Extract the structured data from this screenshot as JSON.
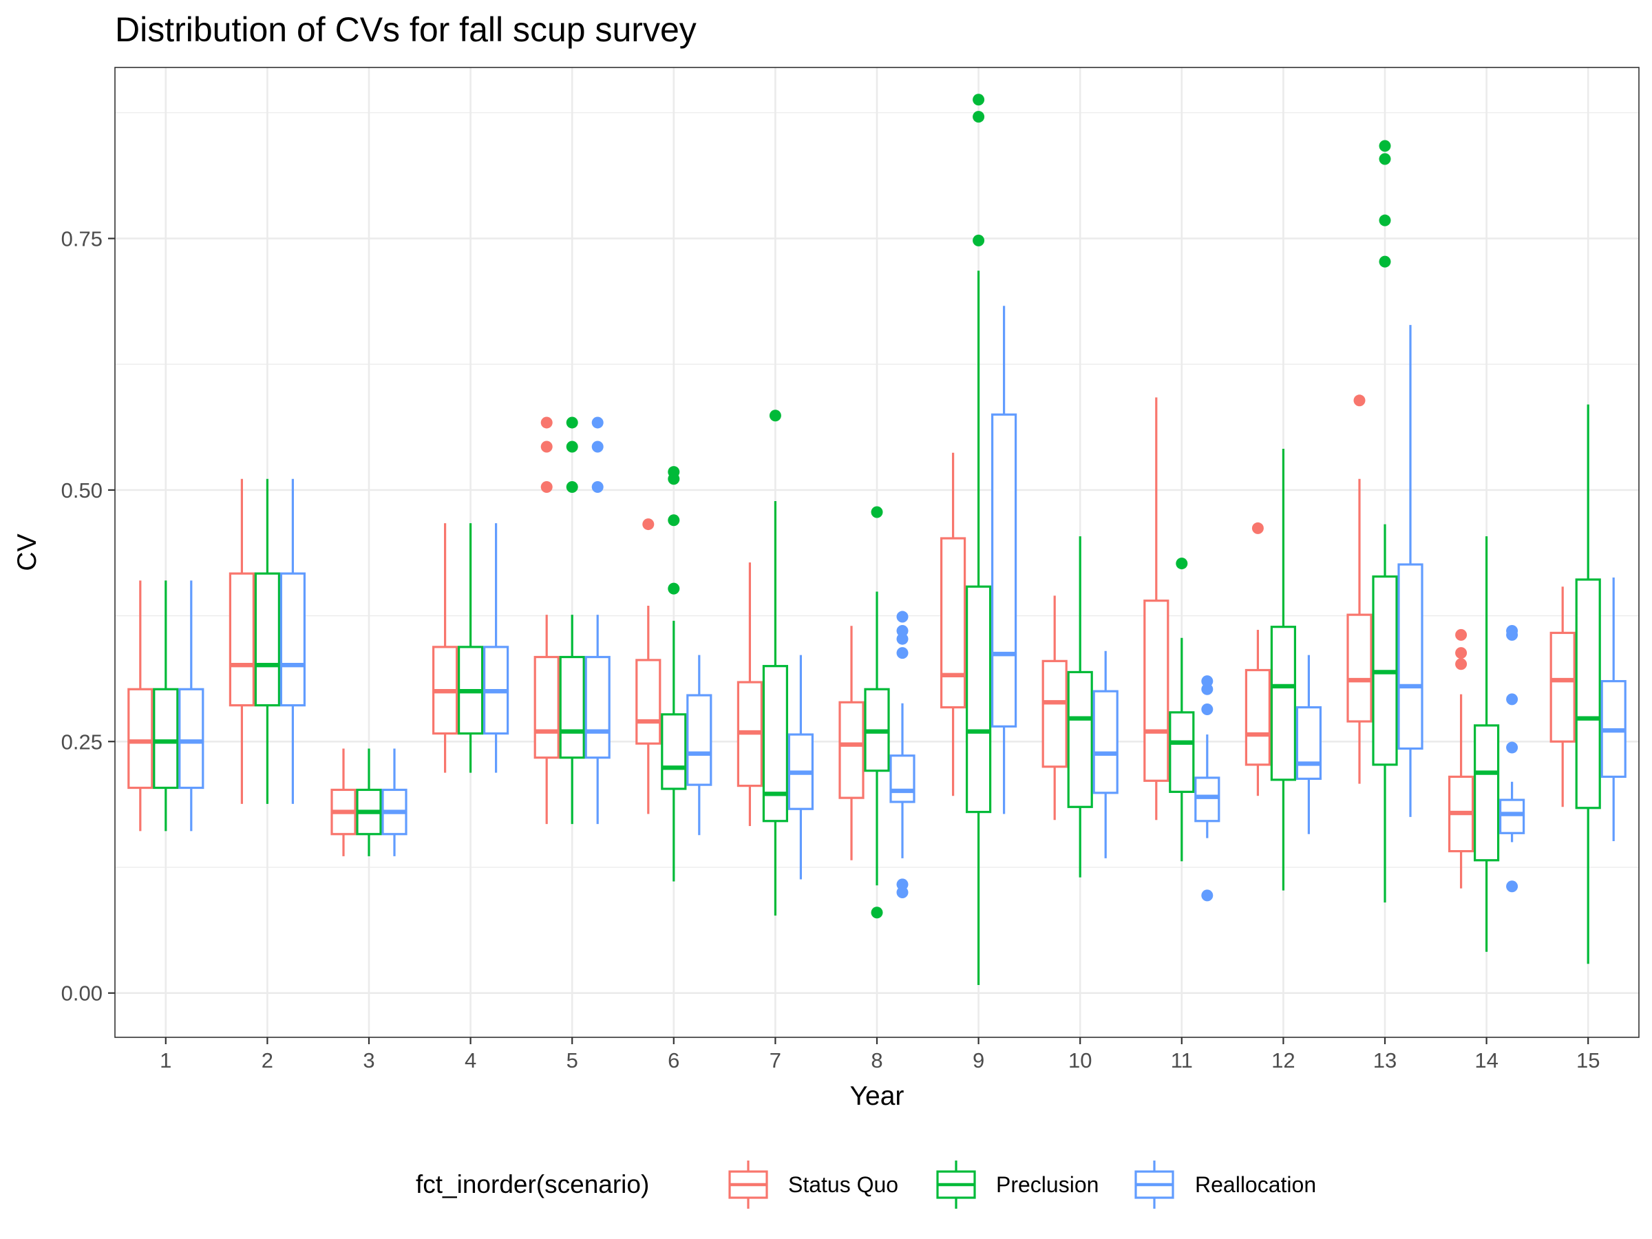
{
  "chart_data": {
    "type": "boxplot",
    "title": "Distribution of CVs for fall scup survey",
    "xlabel": "Year",
    "ylabel": "CV",
    "categories": [
      "1",
      "2",
      "3",
      "4",
      "5",
      "6",
      "7",
      "8",
      "9",
      "10",
      "11",
      "12",
      "13",
      "14",
      "15"
    ],
    "ylim": [
      -0.044,
      0.92
    ],
    "yticks": [
      0.0,
      0.25,
      0.5,
      0.75
    ],
    "ytick_labels": [
      "0.00",
      "0.25",
      "0.50",
      "0.75"
    ],
    "grid": true,
    "legend": {
      "title": "fct_inorder(scenario)",
      "position": "bottom"
    },
    "series": [
      {
        "name": "Status Quo",
        "color": "#F8766D",
        "boxes": [
          {
            "lo": 0.161,
            "q1": 0.204,
            "med": 0.25,
            "q3": 0.302,
            "hi": 0.41,
            "outliers": []
          },
          {
            "lo": 0.188,
            "q1": 0.286,
            "med": 0.326,
            "q3": 0.417,
            "hi": 0.511,
            "outliers": []
          },
          {
            "lo": 0.136,
            "q1": 0.158,
            "med": 0.18,
            "q3": 0.202,
            "hi": 0.243,
            "outliers": []
          },
          {
            "lo": 0.219,
            "q1": 0.258,
            "med": 0.3,
            "q3": 0.344,
            "hi": 0.467,
            "outliers": []
          },
          {
            "lo": 0.168,
            "q1": 0.234,
            "med": 0.26,
            "q3": 0.334,
            "hi": 0.376,
            "outliers": [
              0.503,
              0.543,
              0.567
            ]
          },
          {
            "lo": 0.178,
            "q1": 0.248,
            "med": 0.27,
            "q3": 0.331,
            "hi": 0.385,
            "outliers": [
              0.466
            ]
          },
          {
            "lo": 0.166,
            "q1": 0.206,
            "med": 0.259,
            "q3": 0.309,
            "hi": 0.428,
            "outliers": []
          },
          {
            "lo": 0.132,
            "q1": 0.194,
            "med": 0.247,
            "q3": 0.289,
            "hi": 0.365,
            "outliers": []
          },
          {
            "lo": 0.196,
            "q1": 0.284,
            "med": 0.316,
            "q3": 0.452,
            "hi": 0.537,
            "outliers": []
          },
          {
            "lo": 0.172,
            "q1": 0.225,
            "med": 0.289,
            "q3": 0.33,
            "hi": 0.395,
            "outliers": []
          },
          {
            "lo": 0.172,
            "q1": 0.211,
            "med": 0.26,
            "q3": 0.39,
            "hi": 0.592,
            "outliers": []
          },
          {
            "lo": 0.196,
            "q1": 0.227,
            "med": 0.257,
            "q3": 0.321,
            "hi": 0.361,
            "outliers": [
              0.462
            ]
          },
          {
            "lo": 0.208,
            "q1": 0.27,
            "med": 0.311,
            "q3": 0.376,
            "hi": 0.511,
            "outliers": [
              0.589
            ]
          },
          {
            "lo": 0.104,
            "q1": 0.141,
            "med": 0.179,
            "q3": 0.215,
            "hi": 0.297,
            "outliers": [
              0.327,
              0.338,
              0.356
            ]
          },
          {
            "lo": 0.185,
            "q1": 0.25,
            "med": 0.311,
            "q3": 0.358,
            "hi": 0.404,
            "outliers": []
          }
        ]
      },
      {
        "name": "Preclusion",
        "color": "#00BA38",
        "boxes": [
          {
            "lo": 0.161,
            "q1": 0.204,
            "med": 0.25,
            "q3": 0.302,
            "hi": 0.41,
            "outliers": []
          },
          {
            "lo": 0.188,
            "q1": 0.286,
            "med": 0.326,
            "q3": 0.417,
            "hi": 0.511,
            "outliers": []
          },
          {
            "lo": 0.136,
            "q1": 0.158,
            "med": 0.18,
            "q3": 0.202,
            "hi": 0.243,
            "outliers": []
          },
          {
            "lo": 0.219,
            "q1": 0.258,
            "med": 0.3,
            "q3": 0.344,
            "hi": 0.467,
            "outliers": []
          },
          {
            "lo": 0.168,
            "q1": 0.234,
            "med": 0.26,
            "q3": 0.334,
            "hi": 0.376,
            "outliers": [
              0.503,
              0.543,
              0.567
            ]
          },
          {
            "lo": 0.111,
            "q1": 0.203,
            "med": 0.224,
            "q3": 0.277,
            "hi": 0.37,
            "outliers": [
              0.402,
              0.47,
              0.511,
              0.518
            ]
          },
          {
            "lo": 0.077,
            "q1": 0.171,
            "med": 0.198,
            "q3": 0.325,
            "hi": 0.489,
            "outliers": [
              0.574
            ]
          },
          {
            "lo": 0.107,
            "q1": 0.221,
            "med": 0.26,
            "q3": 0.302,
            "hi": 0.399,
            "outliers": [
              0.08,
              0.478
            ]
          },
          {
            "lo": 0.008,
            "q1": 0.18,
            "med": 0.26,
            "q3": 0.404,
            "hi": 0.718,
            "outliers": [
              0.748,
              0.871,
              0.888
            ]
          },
          {
            "lo": 0.115,
            "q1": 0.185,
            "med": 0.273,
            "q3": 0.319,
            "hi": 0.454,
            "outliers": []
          },
          {
            "lo": 0.131,
            "q1": 0.2,
            "med": 0.249,
            "q3": 0.279,
            "hi": 0.353,
            "outliers": [
              0.427
            ]
          },
          {
            "lo": 0.102,
            "q1": 0.212,
            "med": 0.305,
            "q3": 0.364,
            "hi": 0.541,
            "outliers": []
          },
          {
            "lo": 0.09,
            "q1": 0.227,
            "med": 0.319,
            "q3": 0.414,
            "hi": 0.466,
            "outliers": [
              0.727,
              0.768,
              0.829,
              0.842
            ]
          },
          {
            "lo": 0.041,
            "q1": 0.132,
            "med": 0.219,
            "q3": 0.266,
            "hi": 0.454,
            "outliers": []
          },
          {
            "lo": 0.029,
            "q1": 0.184,
            "med": 0.273,
            "q3": 0.411,
            "hi": 0.585,
            "outliers": []
          }
        ]
      },
      {
        "name": "Reallocation",
        "color": "#619CFF",
        "boxes": [
          {
            "lo": 0.161,
            "q1": 0.204,
            "med": 0.25,
            "q3": 0.302,
            "hi": 0.41,
            "outliers": []
          },
          {
            "lo": 0.188,
            "q1": 0.286,
            "med": 0.326,
            "q3": 0.417,
            "hi": 0.511,
            "outliers": []
          },
          {
            "lo": 0.136,
            "q1": 0.158,
            "med": 0.18,
            "q3": 0.202,
            "hi": 0.243,
            "outliers": []
          },
          {
            "lo": 0.219,
            "q1": 0.258,
            "med": 0.3,
            "q3": 0.344,
            "hi": 0.467,
            "outliers": []
          },
          {
            "lo": 0.168,
            "q1": 0.234,
            "med": 0.26,
            "q3": 0.334,
            "hi": 0.376,
            "outliers": [
              0.503,
              0.543,
              0.567
            ]
          },
          {
            "lo": 0.157,
            "q1": 0.207,
            "med": 0.238,
            "q3": 0.296,
            "hi": 0.336,
            "outliers": []
          },
          {
            "lo": 0.113,
            "q1": 0.183,
            "med": 0.219,
            "q3": 0.257,
            "hi": 0.336,
            "outliers": []
          },
          {
            "lo": 0.134,
            "q1": 0.19,
            "med": 0.201,
            "q3": 0.236,
            "hi": 0.288,
            "outliers": [
              0.1,
              0.108,
              0.338,
              0.352,
              0.36,
              0.374
            ]
          },
          {
            "lo": 0.178,
            "q1": 0.265,
            "med": 0.337,
            "q3": 0.575,
            "hi": 0.683,
            "outliers": []
          },
          {
            "lo": 0.134,
            "q1": 0.199,
            "med": 0.238,
            "q3": 0.3,
            "hi": 0.34,
            "outliers": []
          },
          {
            "lo": 0.154,
            "q1": 0.171,
            "med": 0.195,
            "q3": 0.214,
            "hi": 0.257,
            "outliers": [
              0.097,
              0.282,
              0.302,
              0.31
            ]
          },
          {
            "lo": 0.158,
            "q1": 0.213,
            "med": 0.228,
            "q3": 0.284,
            "hi": 0.336,
            "outliers": []
          },
          {
            "lo": 0.175,
            "q1": 0.243,
            "med": 0.305,
            "q3": 0.426,
            "hi": 0.664,
            "outliers": []
          },
          {
            "lo": 0.15,
            "q1": 0.159,
            "med": 0.178,
            "q3": 0.192,
            "hi": 0.21,
            "outliers": [
              0.106,
              0.244,
              0.292,
              0.356,
              0.36
            ]
          },
          {
            "lo": 0.151,
            "q1": 0.215,
            "med": 0.261,
            "q3": 0.31,
            "hi": 0.413,
            "outliers": []
          }
        ]
      }
    ]
  }
}
